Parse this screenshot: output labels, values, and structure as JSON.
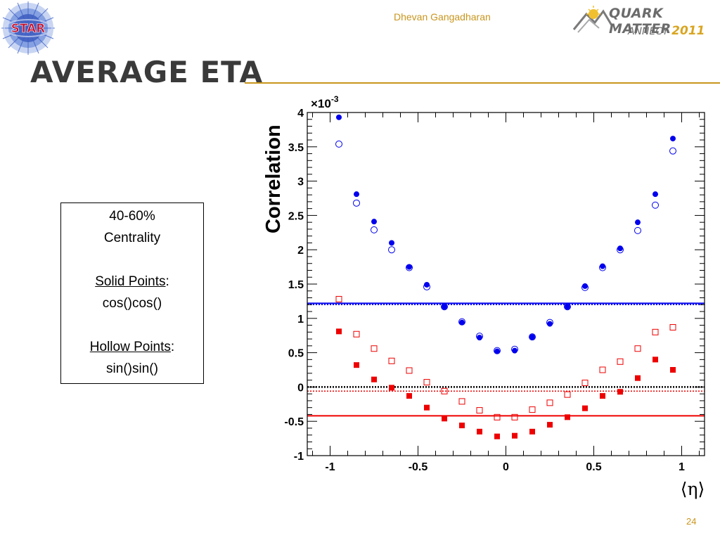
{
  "header": {
    "logo_text": "STAR",
    "author": "Dhevan Gangadharan",
    "conference_line1": "QUARK MATTER",
    "conference_city": "ANNECY",
    "conference_year": "2011"
  },
  "slide": {
    "title": "AVERAGE ETA",
    "page_number": "24"
  },
  "legend_box": {
    "line1": "40-60%",
    "line2": "Centrality",
    "solid_label": "Solid Points",
    "solid_suffix": ":",
    "solid_value": "cos()cos()",
    "hollow_label": "Hollow Points",
    "hollow_suffix": ":",
    "hollow_value": "sin()sin()"
  },
  "colors": {
    "accent": "#c8961e",
    "blue": "#0000ee",
    "red": "#ee0000"
  },
  "chart_data": {
    "type": "scatter",
    "title": "",
    "xlabel": "⟨η⟩",
    "ylabel": "Correlation",
    "y_multiplier": "×10",
    "y_multiplier_exp": "-3",
    "xlim": [
      -1.13,
      1.13
    ],
    "ylim": [
      -1,
      4
    ],
    "xticks": [
      -1,
      -0.5,
      0,
      0.5,
      1
    ],
    "xtick_labels": [
      "-1",
      "-0.5",
      "0",
      "0.5",
      "1"
    ],
    "yticks": [
      -1,
      -0.5,
      0,
      0.5,
      1,
      1.5,
      2,
      2.5,
      3,
      3.5,
      4
    ],
    "ytick_labels": [
      "-1",
      "-0.5",
      "0",
      "0.5",
      "1",
      "1.5",
      "2",
      "2.5",
      "3",
      "3.5",
      "4"
    ],
    "x": [
      -0.95,
      -0.85,
      -0.75,
      -0.65,
      -0.55,
      -0.45,
      -0.35,
      -0.25,
      -0.15,
      -0.05,
      0.05,
      0.15,
      0.25,
      0.35,
      0.45,
      0.55,
      0.65,
      0.75,
      0.85,
      0.95
    ],
    "series": [
      {
        "values": [
          3.93,
          2.81,
          2.41,
          2.1,
          1.75,
          1.49,
          1.17,
          0.94,
          0.72,
          0.52,
          0.53,
          0.73,
          0.92,
          1.17,
          1.47,
          1.76,
          2.02,
          2.4,
          2.81,
          3.62
        ],
        "color": "#0000ee",
        "marker": "circle-filled"
      },
      {
        "values": [
          3.54,
          2.68,
          2.29,
          2.0,
          1.74,
          1.46,
          1.17,
          0.95,
          0.74,
          0.53,
          0.55,
          0.73,
          0.94,
          1.17,
          1.45,
          1.74,
          2.0,
          2.28,
          2.65,
          3.44
        ],
        "color": "#0000ee",
        "marker": "circle-open"
      },
      {
        "values": [
          0.81,
          0.32,
          0.11,
          -0.01,
          -0.13,
          -0.3,
          -0.46,
          -0.56,
          -0.65,
          -0.72,
          -0.71,
          -0.65,
          -0.55,
          -0.44,
          -0.31,
          -0.13,
          -0.07,
          0.13,
          0.4,
          0.25
        ],
        "color": "#ee0000",
        "marker": "square-filled"
      },
      {
        "values": [
          1.28,
          0.77,
          0.56,
          0.38,
          0.24,
          0.07,
          -0.06,
          -0.21,
          -0.34,
          -0.44,
          -0.44,
          -0.33,
          -0.23,
          -0.11,
          0.06,
          0.25,
          0.37,
          0.56,
          0.8,
          0.87
        ],
        "color": "#ee0000",
        "marker": "square-open"
      }
    ],
    "reference_lines": [
      {
        "y": 1.22,
        "color": "#0000ee",
        "style": "solid"
      },
      {
        "y": 1.2,
        "color": "#0000ee",
        "style": "dotted"
      },
      {
        "y": -0.42,
        "color": "#ee0000",
        "style": "solid"
      },
      {
        "y": -0.06,
        "color": "#ee0000",
        "style": "dotted"
      },
      {
        "y": 0.0,
        "color": "#000000",
        "style": "dotted"
      }
    ]
  }
}
